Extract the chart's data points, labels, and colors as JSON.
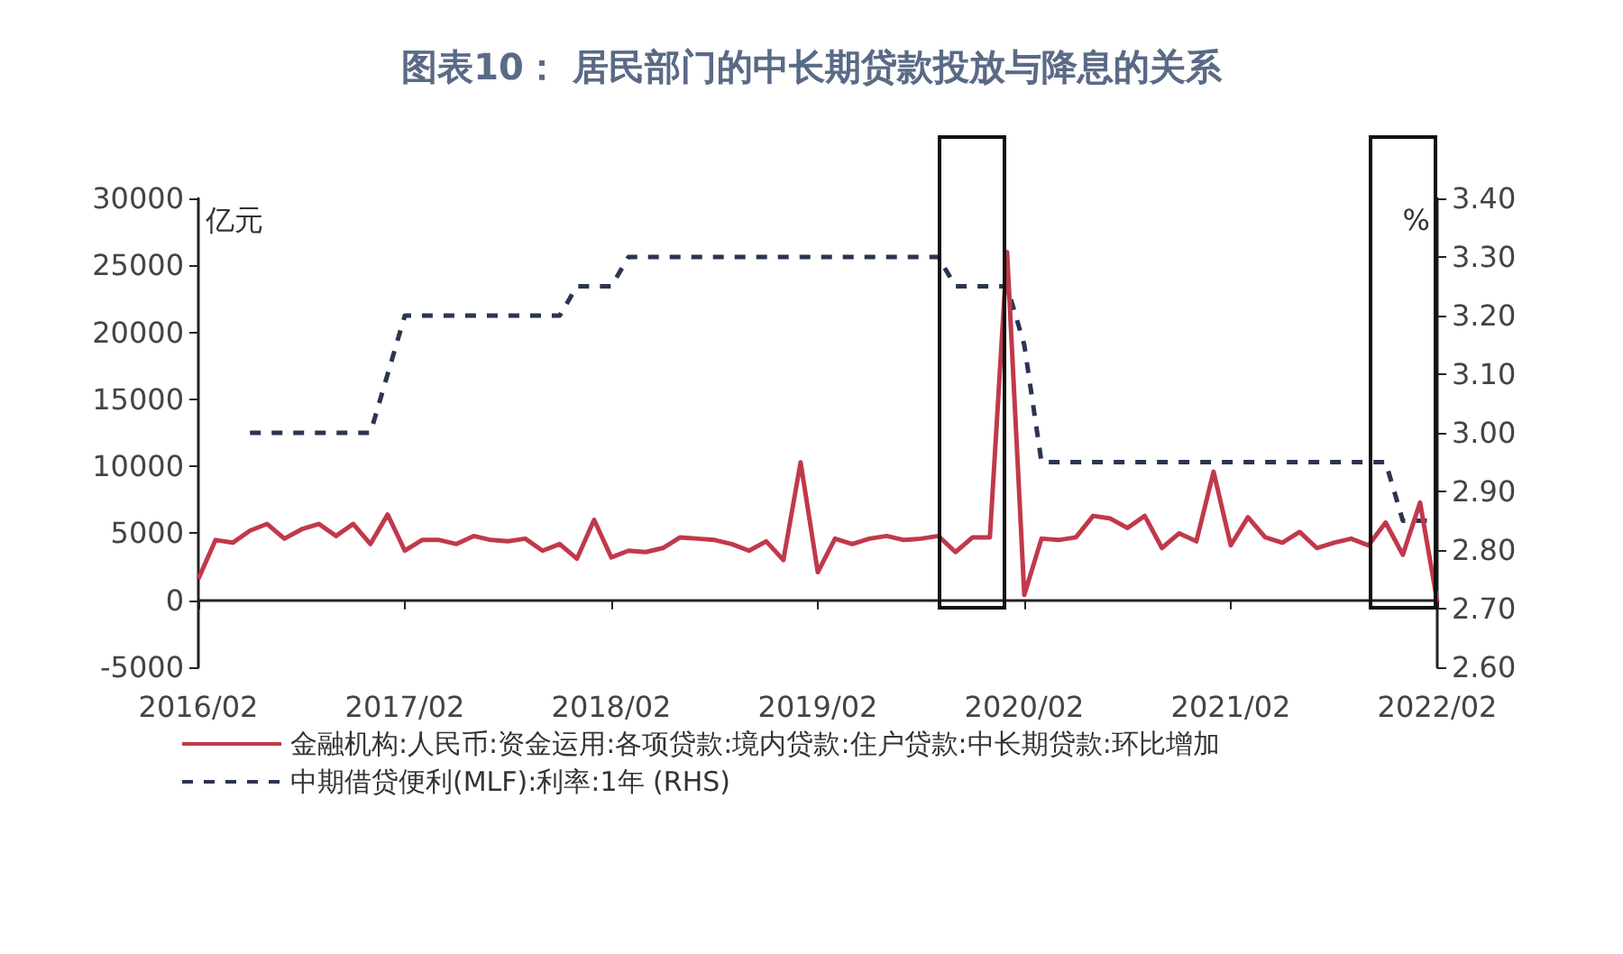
{
  "chart_data": {
    "type": "line",
    "title": "图表10： 居民部门的中长期贷款投放与降息的关系",
    "ylabel": "亿元",
    "y2label": "%",
    "categories": [
      "2016/02",
      null,
      null,
      null,
      null,
      null,
      null,
      null,
      null,
      null,
      null,
      null,
      "2017/02",
      null,
      null,
      null,
      null,
      null,
      null,
      null,
      null,
      null,
      null,
      null,
      "2018/02",
      null,
      null,
      null,
      null,
      null,
      null,
      null,
      null,
      null,
      null,
      null,
      "2019/02",
      null,
      null,
      null,
      null,
      null,
      null,
      null,
      null,
      null,
      null,
      null,
      "2020/02",
      null,
      null,
      null,
      null,
      null,
      null,
      null,
      null,
      null,
      null,
      null,
      "2021/02",
      null,
      null,
      null,
      null,
      null,
      null,
      null,
      null,
      null,
      null,
      null,
      "2022/02"
    ],
    "series": [
      {
        "name": "金融机构:人民币:资金运用:各项贷款:境内贷款:住户贷款:中长期贷款:环比增加",
        "color": "#c0394b",
        "line_style": "solid",
        "values": [
          1600,
          4500,
          4300,
          5200,
          5700,
          4600,
          5300,
          5700,
          4800,
          5700,
          4200,
          6400,
          3700,
          4500,
          4500,
          4200,
          4800,
          4500,
          4400,
          4600,
          3700,
          4200,
          3100,
          6000,
          3200,
          3700,
          3600,
          3900,
          4700,
          4600,
          4500,
          4200,
          3700,
          4400,
          3000,
          10300,
          2100,
          4600,
          4200,
          4600,
          4800,
          4500,
          4600,
          4800,
          3600,
          4700,
          4700,
          26000,
          400,
          4600,
          4500,
          4700,
          6300,
          6100,
          5400,
          6300,
          3900,
          5000,
          4400,
          9600,
          4100,
          6200,
          4700,
          4300,
          5100,
          3900,
          4300,
          4600,
          4100,
          5800,
          3400,
          7300,
          -100
        ]
      },
      {
        "name": "中期借贷便利(MLF):利率:1年 (RHS)",
        "color": "#2b3550",
        "line_style": "dashed",
        "axis": "y2",
        "values": [
          null,
          null,
          null,
          3.0,
          3.0,
          3.0,
          3.0,
          3.0,
          3.0,
          3.0,
          3.0,
          3.1,
          3.2,
          3.2,
          3.2,
          3.2,
          3.2,
          3.2,
          3.2,
          3.2,
          3.2,
          3.2,
          3.25,
          3.25,
          3.25,
          3.3,
          3.3,
          3.3,
          3.3,
          3.3,
          3.3,
          3.3,
          3.3,
          3.3,
          3.3,
          3.3,
          3.3,
          3.3,
          3.3,
          3.3,
          3.3,
          3.3,
          3.3,
          3.3,
          3.25,
          3.25,
          3.25,
          3.25,
          3.15,
          2.95,
          2.95,
          2.95,
          2.95,
          2.95,
          2.95,
          2.95,
          2.95,
          2.95,
          2.95,
          2.95,
          2.95,
          2.95,
          2.95,
          2.95,
          2.95,
          2.95,
          2.95,
          2.95,
          2.95,
          2.95,
          2.85,
          2.85,
          2.85
        ]
      }
    ],
    "ylim": [
      -5000,
      30000
    ],
    "yticks": [
      -5000,
      0,
      5000,
      10000,
      15000,
      20000,
      25000,
      30000
    ],
    "y2lim": [
      2.6,
      3.4
    ],
    "y2ticks": [
      {
        "value": 2.6,
        "label": "2.60"
      },
      {
        "value": 2.7,
        "label": "2.70"
      },
      {
        "value": 2.8,
        "label": "2.80"
      },
      {
        "value": 2.9,
        "label": "2.90"
      },
      {
        "value": 3.0,
        "label": "3.00"
      },
      {
        "value": 3.1,
        "label": "3.10"
      },
      {
        "value": 3.2,
        "label": "3.20"
      },
      {
        "value": 3.3,
        "label": "3.30"
      },
      {
        "value": 3.4,
        "label": "3.40"
      }
    ],
    "ref_lines": [
      {
        "axis": "y",
        "value": 0,
        "color": "#222222",
        "line_style": "solid"
      }
    ],
    "grid": false,
    "legend": "bottom",
    "marker": "none"
  }
}
